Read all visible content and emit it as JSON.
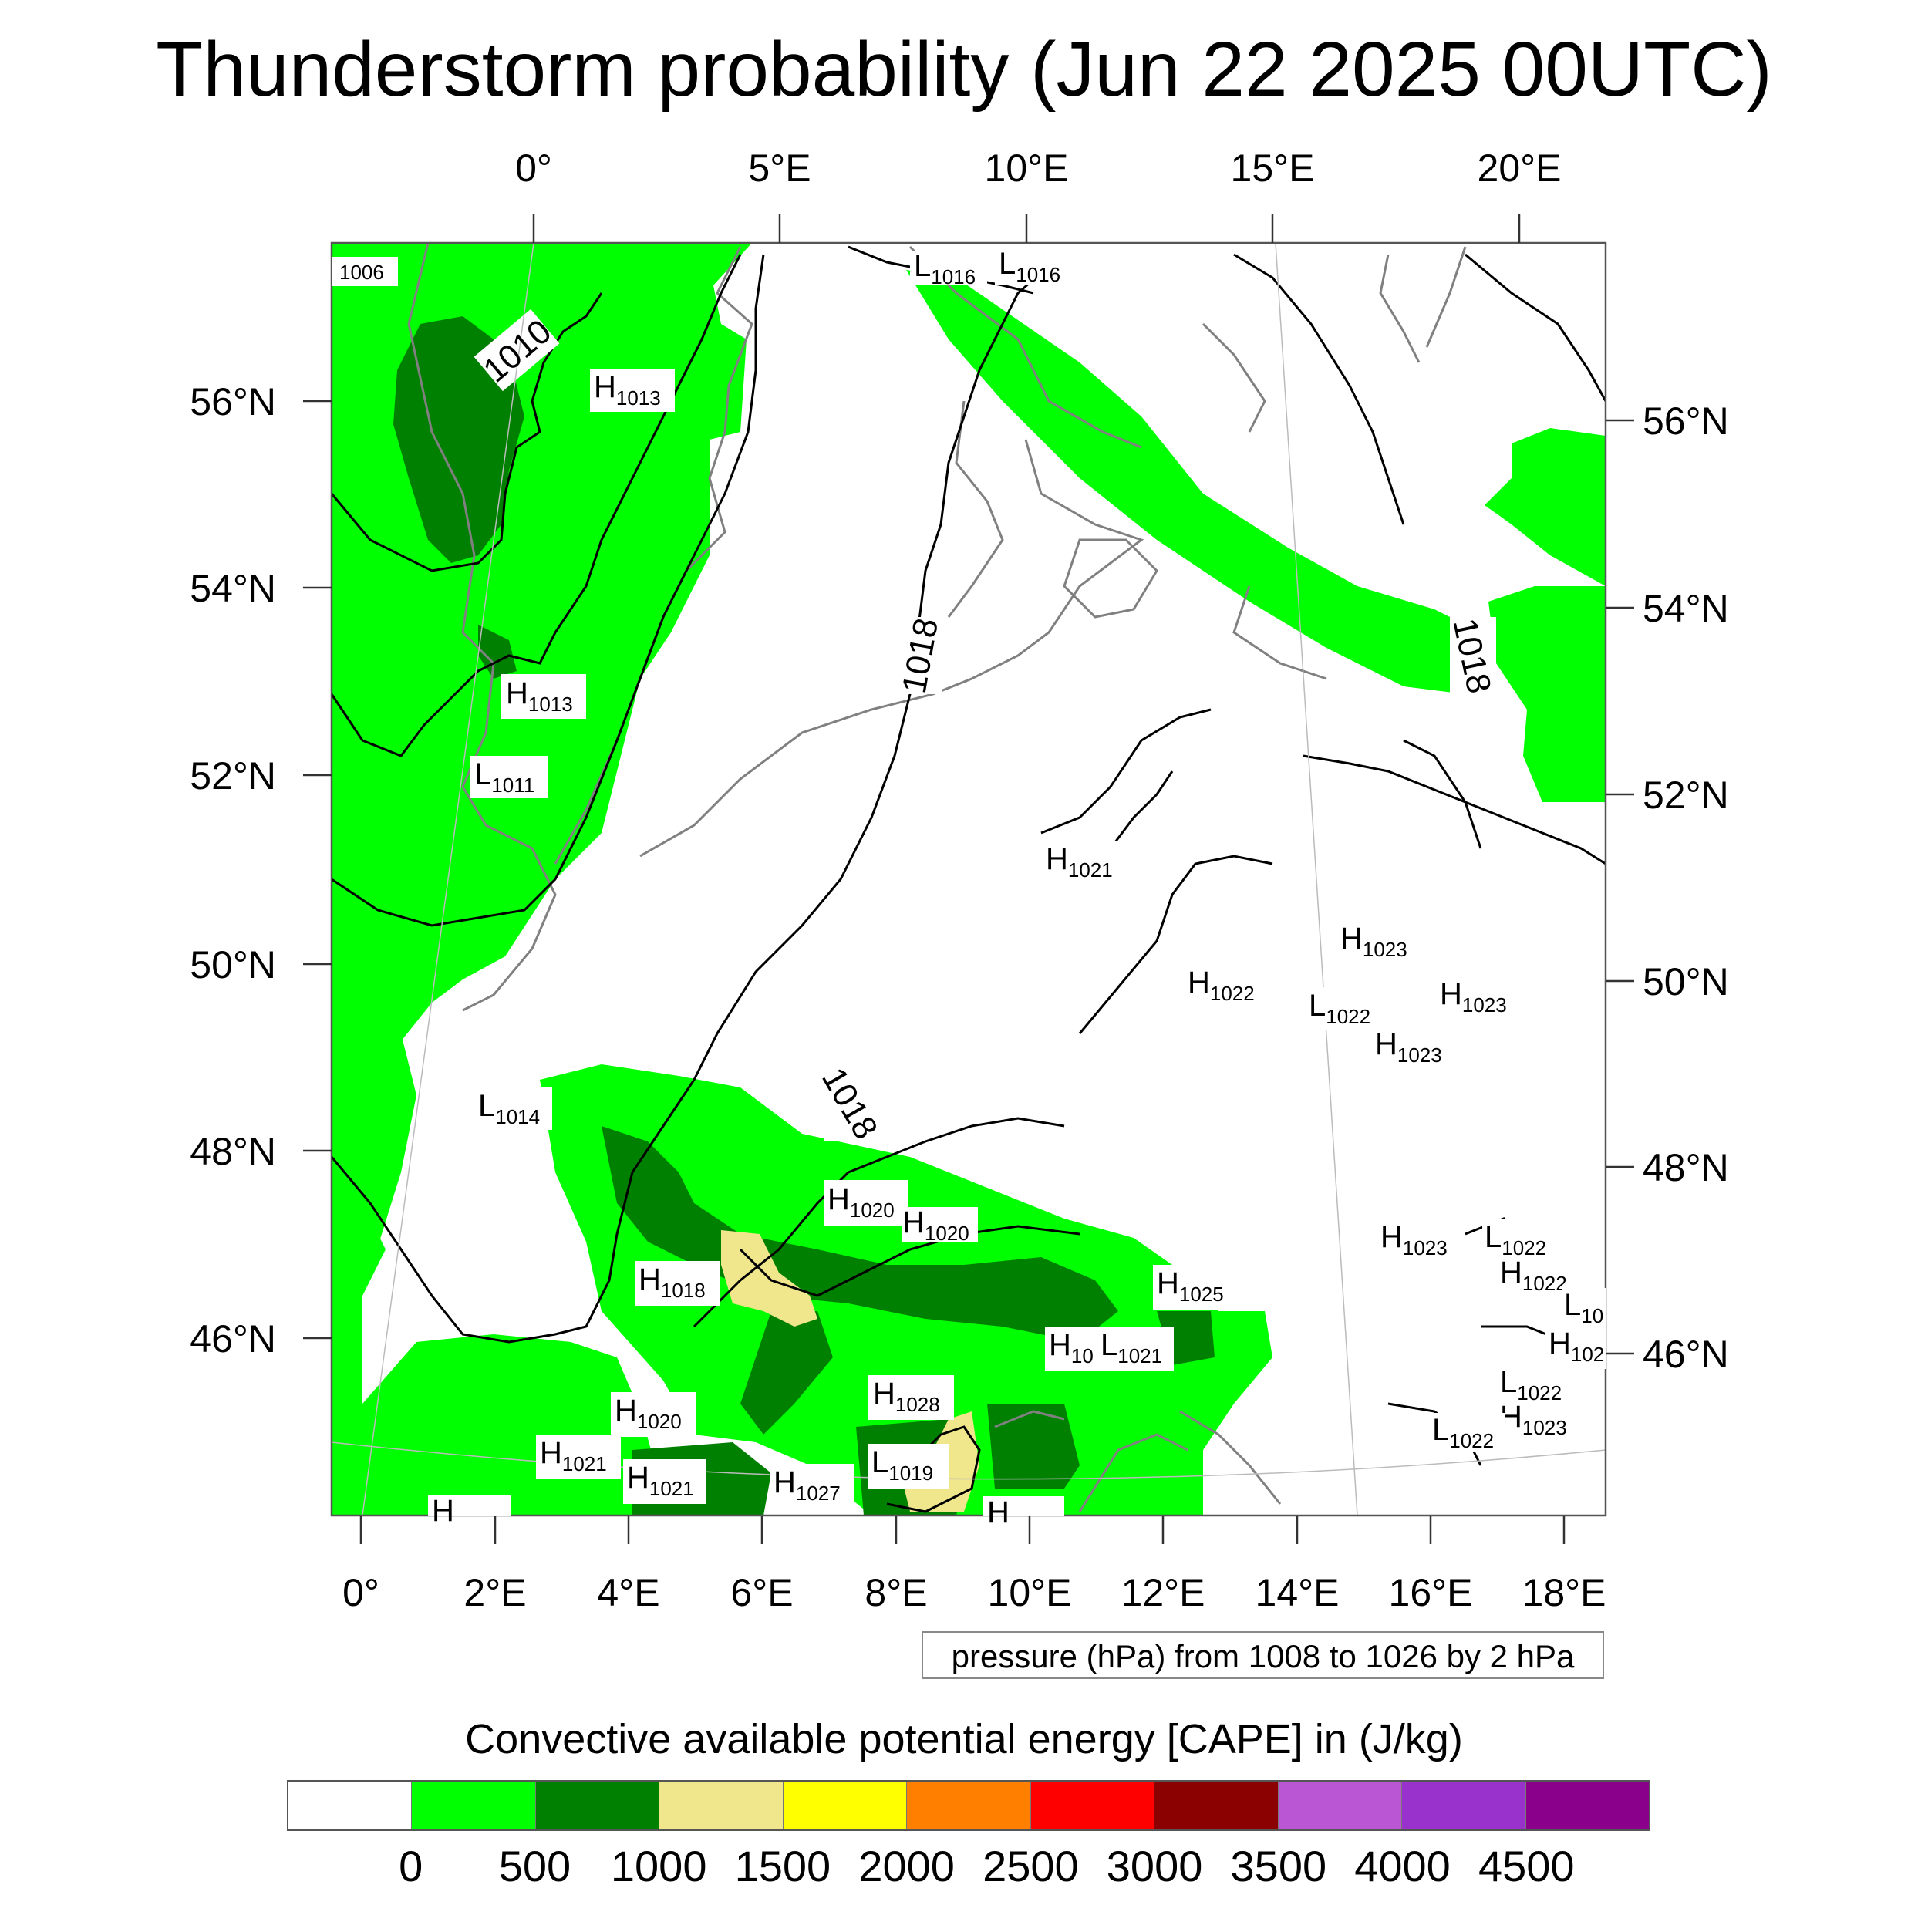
{
  "title": "Thunderstorm probability (Jun 22 2025 00UTC)",
  "map": {
    "top_lon_labels": [
      "0°",
      "5°E",
      "10°E",
      "15°E",
      "20°E"
    ],
    "bottom_lon_labels": [
      "0°",
      "2°E",
      "4°E",
      "6°E",
      "8°E",
      "10°E",
      "12°E",
      "14°E",
      "16°E",
      "18°E"
    ],
    "left_lat_labels": [
      "56°N",
      "54°N",
      "52°N",
      "50°N",
      "48°N",
      "46°N"
    ],
    "right_lat_labels": [
      "56°N",
      "54°N",
      "52°N",
      "50°N",
      "48°N",
      "46°N"
    ],
    "contour_labels": [
      "1010",
      "1018",
      "1018",
      "1018"
    ],
    "pressure_labels": [
      {
        "letter": "",
        "value": "1006"
      },
      {
        "letter": "L",
        "value": "1016"
      },
      {
        "letter": "L",
        "value": "1016"
      },
      {
        "letter": "H",
        "value": "1013"
      },
      {
        "letter": "H",
        "value": "1013"
      },
      {
        "letter": "L",
        "value": "1011"
      },
      {
        "letter": "H",
        "value": "1021"
      },
      {
        "letter": "H",
        "value": "1023"
      },
      {
        "letter": "H",
        "value": "1022"
      },
      {
        "letter": "L",
        "value": "1022"
      },
      {
        "letter": "H",
        "value": "1023"
      },
      {
        "letter": "H",
        "value": "1023"
      },
      {
        "letter": "L",
        "value": "1014"
      },
      {
        "letter": "H",
        "value": "1020"
      },
      {
        "letter": "H",
        "value": "1020"
      },
      {
        "letter": "H",
        "value": "1018"
      },
      {
        "letter": "H",
        "value": "1025"
      },
      {
        "letter": "H",
        "value": "10"
      },
      {
        "letter": "L",
        "value": "1021"
      },
      {
        "letter": "H",
        "value": "1028"
      },
      {
        "letter": "H",
        "value": "1020"
      },
      {
        "letter": "H",
        "value": "1021"
      },
      {
        "letter": "H",
        "value": "1021"
      },
      {
        "letter": "H",
        "value": "1027"
      },
      {
        "letter": "L",
        "value": "1019"
      },
      {
        "letter": "H",
        "value": "1023"
      },
      {
        "letter": "L",
        "value": "1022"
      },
      {
        "letter": "H",
        "value": "1022"
      },
      {
        "letter": "L",
        "value": "10"
      },
      {
        "letter": "H",
        "value": "102"
      },
      {
        "letter": "L",
        "value": "1022"
      },
      {
        "letter": "H",
        "value": "1023"
      },
      {
        "letter": "L",
        "value": "1022"
      },
      {
        "letter": "H",
        "value": ""
      },
      {
        "letter": "H",
        "value": ""
      }
    ]
  },
  "contour_info": "pressure (hPa) from 1008 to 1026 by 2 hPa",
  "colorbar": {
    "title": "Convective available potential energy [CAPE] in (J/kg)",
    "colors": [
      "#ffffff",
      "#00ff00",
      "#008000",
      "#f0e68c",
      "#ffff00",
      "#ff8000",
      "#ff0000",
      "#8b0000",
      "#ba55d3",
      "#9932cc",
      "#8b008b"
    ],
    "tick_labels": [
      "0",
      "500",
      "1000",
      "1500",
      "2000",
      "2500",
      "3000",
      "3500",
      "4000",
      "4500"
    ]
  },
  "colors": {
    "cape_green": "#00ff00",
    "cape_dark_green": "#008000",
    "cape_khaki": "#f0e68c",
    "coastline": "#808080",
    "isobar": "#000000"
  }
}
